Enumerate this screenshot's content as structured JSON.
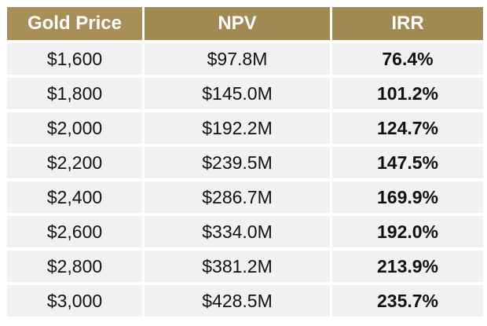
{
  "table": {
    "headers": [
      "Gold Price",
      "NPV",
      "IRR"
    ],
    "rows": [
      {
        "gold_price": "$1,600",
        "npv": "$97.8M",
        "irr": "76.4%"
      },
      {
        "gold_price": "$1,800",
        "npv": "$145.0M",
        "irr": "101.2%"
      },
      {
        "gold_price": "$2,000",
        "npv": "$192.2M",
        "irr": "124.7%"
      },
      {
        "gold_price": "$2,200",
        "npv": "$239.5M",
        "irr": "147.5%"
      },
      {
        "gold_price": "$2,400",
        "npv": "$286.7M",
        "irr": "169.9%"
      },
      {
        "gold_price": "$2,600",
        "npv": "$334.0M",
        "irr": "192.0%"
      },
      {
        "gold_price": "$2,800",
        "npv": "$381.2M",
        "irr": "213.9%"
      },
      {
        "gold_price": "$3,000",
        "npv": "$428.5M",
        "irr": "235.7%"
      }
    ]
  },
  "colors": {
    "header_background": "#a28a55",
    "header_text": "#ffffff",
    "row_background": "#f1f1f1",
    "cell_text": "#111111"
  }
}
